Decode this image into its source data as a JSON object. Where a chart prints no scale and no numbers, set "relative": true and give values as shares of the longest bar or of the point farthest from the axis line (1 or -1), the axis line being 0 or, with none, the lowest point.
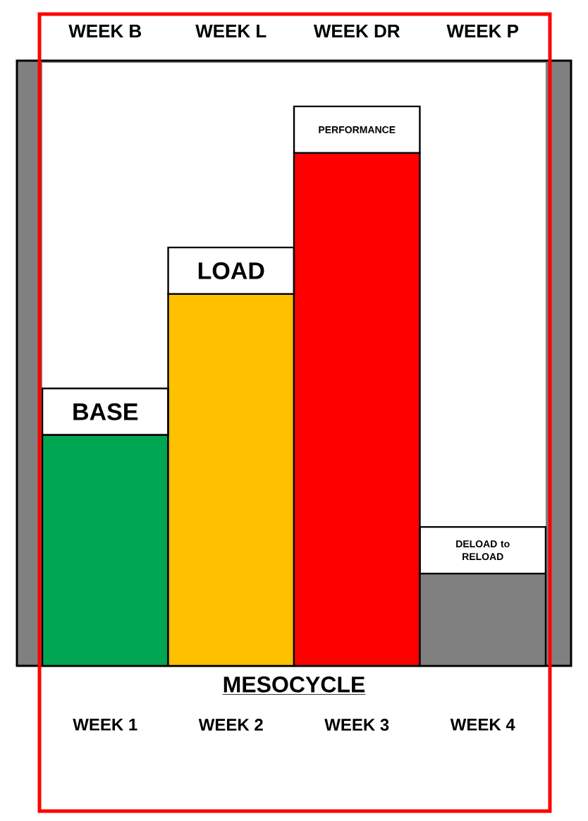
{
  "chart_data": {
    "type": "bar",
    "relative": true,
    "categories": [
      "WEEK 1",
      "WEEK 2",
      "WEEK 3",
      "WEEK 4"
    ],
    "values": [
      0.45,
      0.725,
      1,
      0.18
    ],
    "colors": [
      "#00a651",
      "#ffc000",
      "#ff0000",
      "#808080"
    ],
    "xlabel": "MESOCYCLE",
    "annotations": [
      "WEEK B",
      "WEEK L",
      "WEEK DR",
      "WEEK P",
      {
        "text": "BASE",
        "x": "WEEK 1",
        "y": 0.45
      },
      {
        "text": "LOAD",
        "x": "WEEK 2",
        "y": 0.725
      },
      {
        "text": "PERFORMANCE",
        "x": "WEEK 3",
        "y": 1
      },
      {
        "text": "DELOAD to RELOAD",
        "x": "WEEK 4",
        "y": 0.18
      }
    ]
  }
}
